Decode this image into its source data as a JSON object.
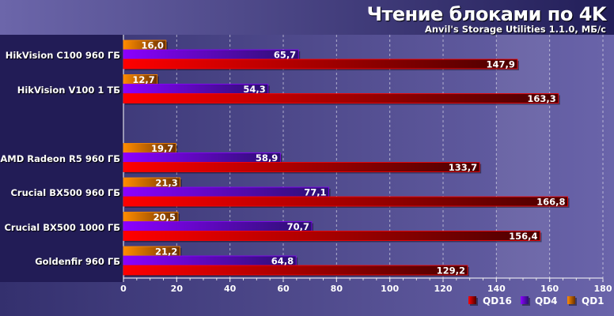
{
  "chart_data": {
    "type": "bar",
    "orientation": "horizontal",
    "title": "Чтение блоками по 4K",
    "subtitle": "Anvil's Storage Utilities 1.1.0, МБ/с",
    "categories": [
      "HikVision C100 960 ГБ",
      "HikVision V100 1 ТБ",
      "",
      "AMD Radeon R5 960 ГБ",
      "Crucial BX500 960 ГБ",
      "Crucial BX500 1000 ГБ",
      "Goldenfir 960 ГБ"
    ],
    "series": [
      {
        "name": "QD1",
        "color": "#ff8a00",
        "values": [
          16.0,
          12.7,
          null,
          19.7,
          21.3,
          20.5,
          21.2
        ]
      },
      {
        "name": "QD4",
        "color": "#8a00ff",
        "values": [
          65.7,
          54.3,
          null,
          58.9,
          77.1,
          70.7,
          64.8
        ]
      },
      {
        "name": "QD16",
        "color": "#ff0000",
        "values": [
          147.9,
          163.3,
          null,
          133.7,
          166.8,
          156.4,
          129.2
        ]
      }
    ],
    "xlim": [
      0,
      180
    ],
    "xticks": [
      0,
      20,
      40,
      60,
      80,
      100,
      120,
      140,
      160,
      180
    ],
    "grid": true,
    "legend_order": [
      "QD16",
      "QD4",
      "QD1"
    ],
    "legend_position": "bottom-right"
  }
}
